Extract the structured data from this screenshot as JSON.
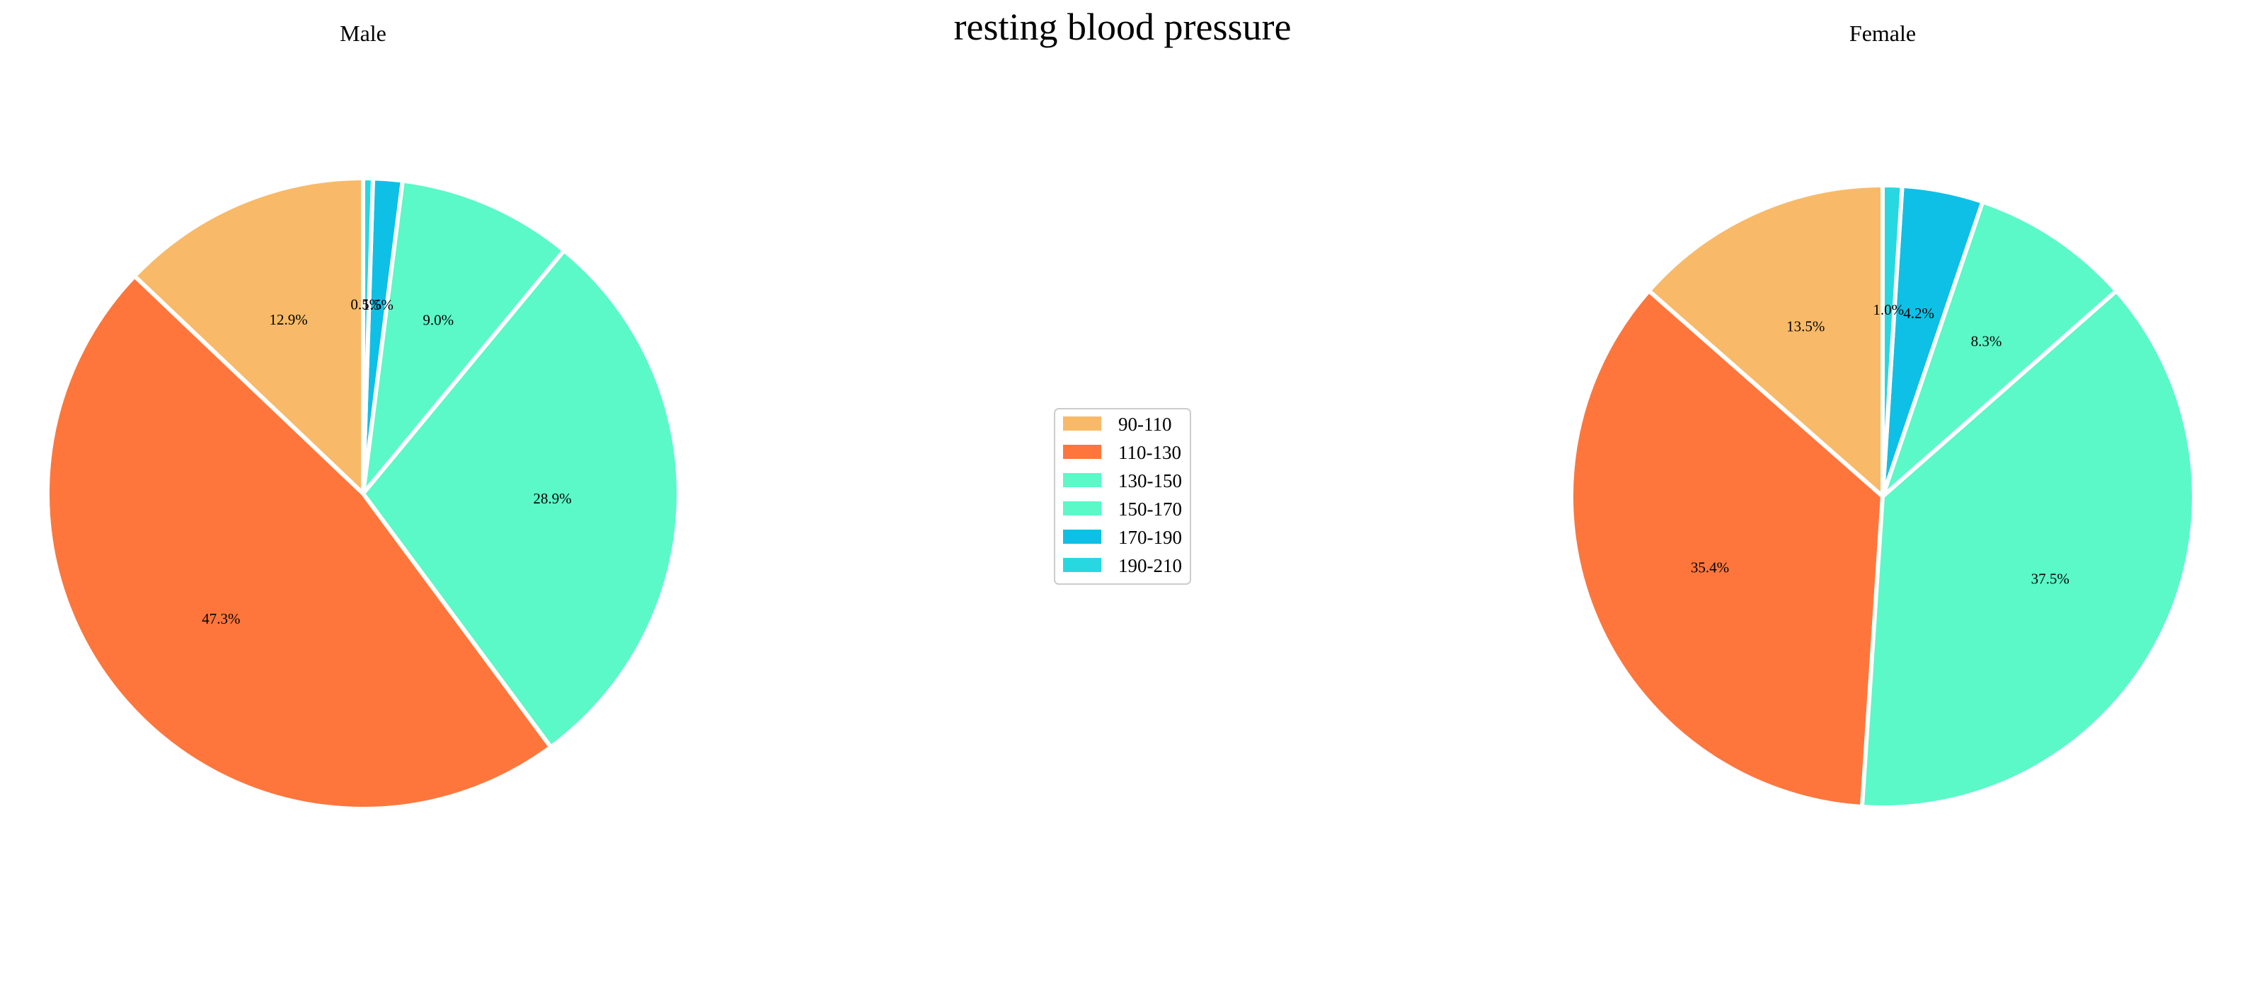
{
  "chart_data": {
    "type": "pie",
    "title": "resting blood pressure",
    "legend": {
      "placement": "center",
      "entries": [
        {
          "label": "90-110",
          "color": "#F8BA68"
        },
        {
          "label": "110-130",
          "color": "#FE763C"
        },
        {
          "label": "130-150",
          "color": "#5BF8C8"
        },
        {
          "label": "150-170",
          "color": "#5BF8C8"
        },
        {
          "label": "170-190",
          "color": "#0EC0E6"
        },
        {
          "label": "190-210",
          "color": "#28D8E0"
        }
      ]
    },
    "pies": [
      {
        "name": "Male",
        "categories": [
          "90-110",
          "110-130",
          "130-150",
          "150-170",
          "170-190",
          "190-210"
        ],
        "values": [
          12.9,
          47.3,
          28.9,
          9.0,
          1.5,
          0.5
        ],
        "labels": [
          "12.9%",
          "47.3%",
          "28.9%",
          "9.0%",
          "1.5%",
          "0.5%"
        ]
      },
      {
        "name": "Female",
        "categories": [
          "90-110",
          "110-130",
          "130-150",
          "150-170",
          "170-190",
          "190-210"
        ],
        "values": [
          13.5,
          35.4,
          37.5,
          8.3,
          4.2,
          1.0
        ],
        "labels": [
          "13.5%",
          "35.4%",
          "37.5%",
          "8.3%",
          "4.2%",
          "1.0%"
        ]
      }
    ]
  }
}
